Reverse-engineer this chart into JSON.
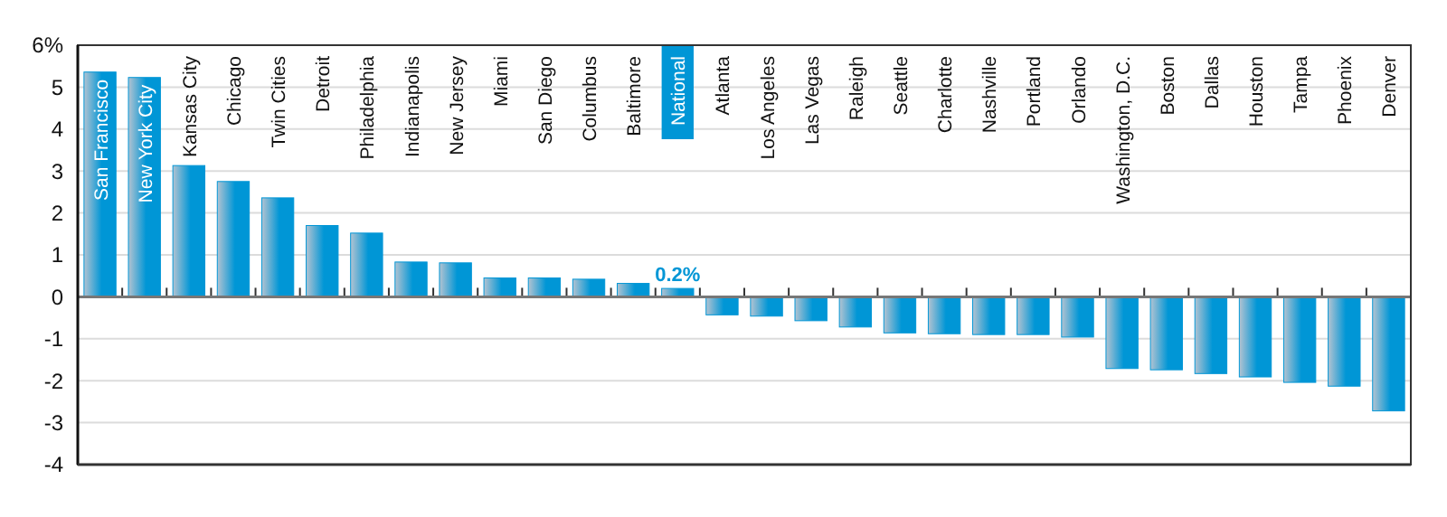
{
  "chart_data": {
    "type": "bar",
    "categories": [
      "San Francisco",
      "New York City",
      "Kansas City",
      "Chicago",
      "Twin Cities",
      "Detroit",
      "Philadelphia",
      "Indianapolis",
      "New Jersey",
      "Miami",
      "San Diego",
      "Columbus",
      "Baltimore",
      "National",
      "Atlanta",
      "Los Angeles",
      "Las Vegas",
      "Raleigh",
      "Seattle",
      "Charlotte",
      "Nashville",
      "Portland",
      "Orlando",
      "Washington, D.C.",
      "Boston",
      "Dallas",
      "Houston",
      "Tampa",
      "Phoenix",
      "Denver"
    ],
    "values": [
      5.36,
      5.23,
      3.13,
      2.75,
      2.36,
      1.7,
      1.52,
      0.83,
      0.81,
      0.45,
      0.45,
      0.42,
      0.32,
      0.2,
      -0.43,
      -0.46,
      -0.57,
      -0.72,
      -0.86,
      -0.88,
      -0.9,
      -0.9,
      -0.96,
      -1.71,
      -1.74,
      -1.83,
      -1.91,
      -2.04,
      -2.13,
      -2.72
    ],
    "value_labels": [
      null,
      null,
      null,
      null,
      null,
      null,
      null,
      null,
      null,
      null,
      null,
      null,
      null,
      "0.2%",
      null,
      null,
      null,
      null,
      null,
      null,
      null,
      null,
      null,
      null,
      null,
      null,
      null,
      null,
      null,
      null
    ],
    "color": "#0096d6",
    "ylim": [
      -4,
      6
    ],
    "yticks": [
      -4,
      -3,
      -2,
      -1,
      0,
      1,
      2,
      3,
      4,
      5,
      {
        "value": 6,
        "label": "6%"
      }
    ],
    "grid": "y"
  }
}
